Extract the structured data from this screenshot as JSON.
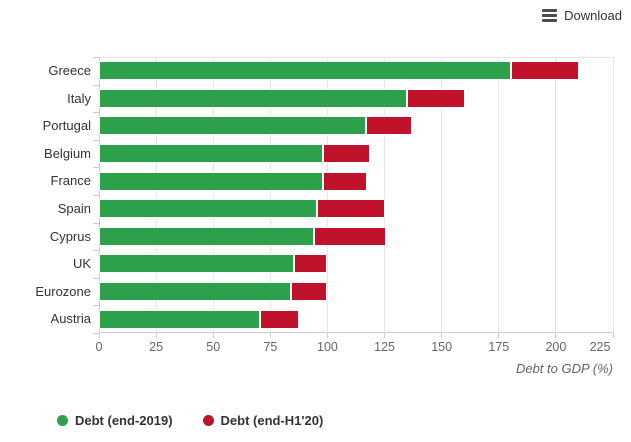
{
  "toolbar": {
    "download_label": "Download",
    "download_icon": "menu-lines-icon"
  },
  "chart_data": {
    "type": "bar",
    "orientation": "horizontal",
    "stacked": true,
    "title": "",
    "xlabel": "Debt to GDP (%)",
    "xlim": [
      0,
      225
    ],
    "xticks": [
      0,
      25,
      50,
      75,
      100,
      125,
      150,
      175,
      200,
      225
    ],
    "grid": true,
    "legend_position": "bottom-left",
    "categories": [
      "Greece",
      "Italy",
      "Portugal",
      "Belgium",
      "France",
      "Spain",
      "Cyprus",
      "UK",
      "Eurozone",
      "Austria"
    ],
    "series": [
      {
        "name": "Debt (end-2019)",
        "color": "#2ca04a",
        "values": [
          180.5,
          134.8,
          116.8,
          98.1,
          98.1,
          95.5,
          94.0,
          85.4,
          84.0,
          70.4
        ]
      },
      {
        "name": "Debt (end-H1'20)",
        "color": "#c1122b",
        "values": [
          210.0,
          160.0,
          137.0,
          118.5,
          117.5,
          125.0,
          125.5,
          100.0,
          100.0,
          87.5
        ]
      }
    ],
    "note": "end-H1'20 values are totals; the red segment is drawn from the end-2019 value to the end-H1'20 value"
  },
  "colors": {
    "grid": "#e6e6e6",
    "axis_line": "#cccccc",
    "category_label": "#333333",
    "tick_label": "#666666",
    "axis_title": "#666666",
    "download_text": "#333333"
  }
}
